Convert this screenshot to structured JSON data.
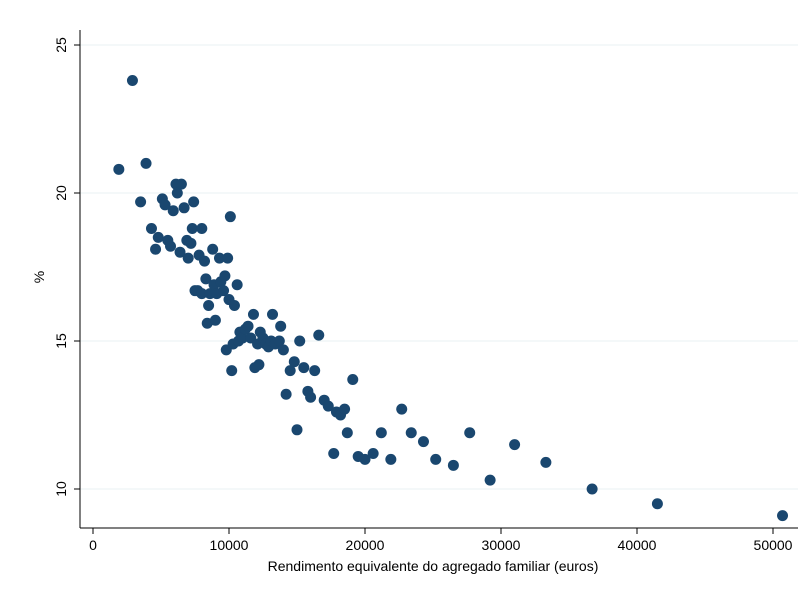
{
  "chart_data": {
    "type": "scatter",
    "title": "",
    "xlabel": "Rendimento equivalente do agregado familiar (euros)",
    "ylabel": "%",
    "xlim": [
      0,
      51000
    ],
    "ylim": [
      9,
      25.5
    ],
    "x_ticks": [
      0,
      10000,
      20000,
      30000,
      40000,
      50000
    ],
    "x_tick_labels": [
      "0",
      "10000",
      "20000",
      "30000",
      "40000",
      "50000"
    ],
    "y_ticks": [
      10,
      15,
      20,
      25
    ],
    "y_tick_labels": [
      "10",
      "15",
      "20",
      "25"
    ],
    "grid": "horizontal",
    "marker_color": "#1a476f",
    "points": [
      [
        1900,
        20.8
      ],
      [
        2900,
        23.8
      ],
      [
        3500,
        19.7
      ],
      [
        3900,
        21.0
      ],
      [
        4300,
        18.8
      ],
      [
        4600,
        18.1
      ],
      [
        4800,
        18.5
      ],
      [
        5100,
        19.8
      ],
      [
        5300,
        19.6
      ],
      [
        5500,
        18.4
      ],
      [
        5700,
        18.2
      ],
      [
        5900,
        19.4
      ],
      [
        6100,
        20.3
      ],
      [
        6200,
        20.0
      ],
      [
        6400,
        18.0
      ],
      [
        6500,
        20.3
      ],
      [
        6700,
        19.5
      ],
      [
        6900,
        18.4
      ],
      [
        7000,
        17.8
      ],
      [
        7200,
        18.3
      ],
      [
        7300,
        18.8
      ],
      [
        7400,
        19.7
      ],
      [
        7500,
        16.7
      ],
      [
        7700,
        16.7
      ],
      [
        7800,
        17.9
      ],
      [
        8000,
        18.8
      ],
      [
        8000,
        16.6
      ],
      [
        8200,
        17.7
      ],
      [
        8300,
        17.1
      ],
      [
        8400,
        15.6
      ],
      [
        8500,
        16.2
      ],
      [
        8600,
        16.6
      ],
      [
        8800,
        18.1
      ],
      [
        8900,
        16.9
      ],
      [
        9000,
        15.7
      ],
      [
        9100,
        16.6
      ],
      [
        9300,
        17.8
      ],
      [
        9400,
        17.0
      ],
      [
        9600,
        16.7
      ],
      [
        9700,
        17.2
      ],
      [
        9800,
        14.7
      ],
      [
        9900,
        17.8
      ],
      [
        10000,
        16.4
      ],
      [
        10100,
        19.2
      ],
      [
        10200,
        14.0
      ],
      [
        10300,
        14.9
      ],
      [
        10400,
        16.2
      ],
      [
        10600,
        16.9
      ],
      [
        10700,
        15.0
      ],
      [
        10800,
        15.3
      ],
      [
        11000,
        15.1
      ],
      [
        11200,
        15.4
      ],
      [
        11400,
        15.5
      ],
      [
        11600,
        15.1
      ],
      [
        11800,
        15.9
      ],
      [
        11900,
        14.1
      ],
      [
        12100,
        14.9
      ],
      [
        12200,
        14.2
      ],
      [
        12300,
        15.3
      ],
      [
        12500,
        15.1
      ],
      [
        12700,
        14.9
      ],
      [
        12900,
        14.8
      ],
      [
        13100,
        15.0
      ],
      [
        13200,
        15.9
      ],
      [
        13400,
        14.9
      ],
      [
        13700,
        15.0
      ],
      [
        13800,
        15.5
      ],
      [
        14000,
        14.7
      ],
      [
        14200,
        13.2
      ],
      [
        14500,
        14.0
      ],
      [
        14800,
        14.3
      ],
      [
        15000,
        12.0
      ],
      [
        15200,
        15.0
      ],
      [
        15500,
        14.1
      ],
      [
        15800,
        13.3
      ],
      [
        16000,
        13.1
      ],
      [
        16300,
        14.0
      ],
      [
        16600,
        15.2
      ],
      [
        17000,
        13.0
      ],
      [
        17300,
        12.8
      ],
      [
        17700,
        11.2
      ],
      [
        17900,
        12.6
      ],
      [
        18200,
        12.5
      ],
      [
        18500,
        12.7
      ],
      [
        18700,
        11.9
      ],
      [
        19100,
        13.7
      ],
      [
        19500,
        11.1
      ],
      [
        20000,
        11.0
      ],
      [
        20600,
        11.2
      ],
      [
        21200,
        11.9
      ],
      [
        21900,
        11.0
      ],
      [
        22700,
        12.7
      ],
      [
        23400,
        11.9
      ],
      [
        24300,
        11.6
      ],
      [
        25200,
        11.0
      ],
      [
        26500,
        10.8
      ],
      [
        27700,
        11.9
      ],
      [
        29200,
        10.3
      ],
      [
        31000,
        11.5
      ],
      [
        33300,
        10.9
      ],
      [
        36700,
        10.0
      ],
      [
        41500,
        9.5
      ],
      [
        50700,
        9.1
      ]
    ]
  }
}
